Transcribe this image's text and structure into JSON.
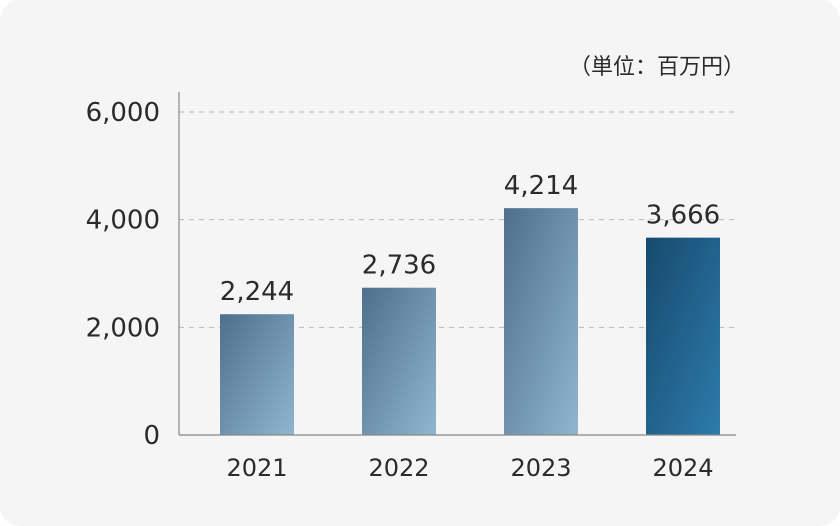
{
  "chart_data": {
    "type": "bar",
    "title": "",
    "xlabel": "",
    "ylabel": "",
    "unit": "（単位：百万円）",
    "categories": [
      "2021",
      "2022",
      "2023",
      "2024"
    ],
    "values": [
      2244,
      2736,
      4214,
      3666
    ],
    "value_labels": [
      "2,244",
      "2,736",
      "4,214",
      "3,666"
    ],
    "ylim": [
      0,
      6000
    ],
    "yticks": [
      0,
      2000,
      4000,
      6000
    ],
    "ytick_labels": [
      "0",
      "2,000",
      "4,000",
      "6,000"
    ],
    "grid": "horizontal-dashed",
    "legend": "none",
    "highlight_index": 3,
    "colors": {
      "bar_light_start": "#4e6f8d",
      "bar_light_end": "#8fb6cf",
      "bar_dark_start": "#164a6e",
      "bar_dark_end": "#2e7bab",
      "grid": "#b8b8b8",
      "axis": "#888888",
      "text": "#2b2b2b",
      "background": "#f5f5f5"
    }
  }
}
